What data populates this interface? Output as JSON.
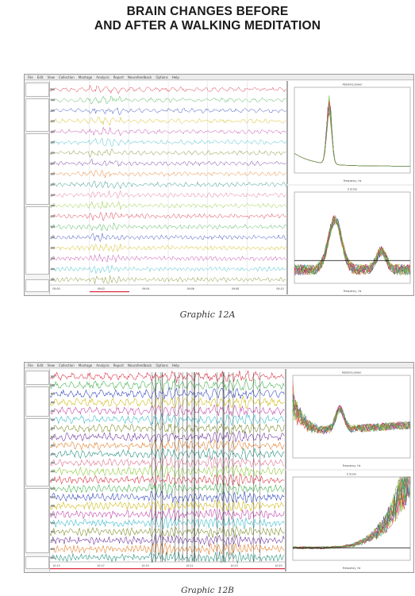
{
  "title": {
    "line1": "BRAIN CHANGES BEFORE",
    "line2": "AND AFTER A WALKING MEDITATION"
  },
  "figures": [
    {
      "id": "12A",
      "caption": "Graphic 12A",
      "menu": [
        "File",
        "Edit",
        "View",
        "Collection",
        "Montage",
        "Analysis",
        "Report",
        "Neurofeedback",
        "Options",
        "Help"
      ],
      "spectrum_top_title": "Absolute power",
      "spectrum_bottom_title": "Z Score",
      "time_ticks": [
        "09:00",
        "09:02",
        "09:04",
        "09:06",
        "09:08",
        "09:10"
      ],
      "freq_label": "Frequency, Hz"
    },
    {
      "id": "12B",
      "caption": "Graphic 12B",
      "menu": [
        "File",
        "Edit",
        "View",
        "Collection",
        "Montage",
        "Analysis",
        "Report",
        "Neurofeedback",
        "Options",
        "Help"
      ],
      "spectrum_top_title": "Absolute power",
      "spectrum_bottom_title": "Z Score",
      "time_ticks": [
        "10:15",
        "10:17",
        "10:19",
        "10:21",
        "10:23",
        "10:25"
      ],
      "freq_label": "Frequency, Hz"
    }
  ],
  "colors": {
    "red": "#d8283a",
    "green": "#3cae46",
    "blue": "#2a3fb8",
    "yellow": "#cfb400",
    "magenta": "#c03ca8",
    "cyan": "#30b8c8",
    "olive": "#7a8a20",
    "purple": "#6a2a9a",
    "orange": "#e07a20",
    "teal": "#1a8a78",
    "pink": "#e06a8a",
    "lime": "#8ac830"
  }
}
